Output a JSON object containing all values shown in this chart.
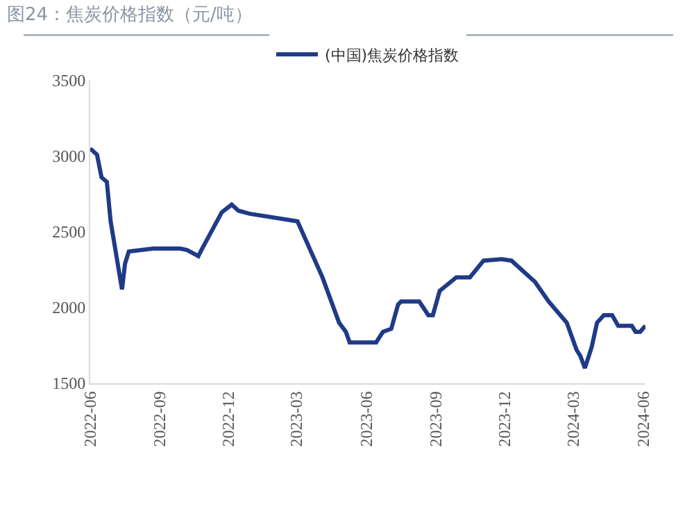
{
  "chart_data": {
    "type": "line",
    "title": "图24：焦炭价格指数（元/吨）",
    "x": [
      "2022-06-01",
      "2022-06-10",
      "2022-06-16",
      "2022-06-23",
      "2022-06-28",
      "2022-07-13",
      "2022-07-17",
      "2022-07-22",
      "2022-08-23",
      "2022-09-28",
      "2022-10-07",
      "2022-10-22",
      "2022-10-26",
      "2022-11-22",
      "2022-12-05",
      "2022-12-14",
      "2022-12-29",
      "2023-03-02",
      "2023-04-04",
      "2023-04-26",
      "2023-05-05",
      "2023-05-10",
      "2023-06-14",
      "2023-06-23",
      "2023-07-04",
      "2023-07-13",
      "2023-07-17",
      "2023-08-10",
      "2023-08-22",
      "2023-08-28",
      "2023-09-06",
      "2023-09-28",
      "2023-10-16",
      "2023-11-03",
      "2023-11-27",
      "2023-12-10",
      "2024-01-10",
      "2024-01-28",
      "2024-02-21",
      "2024-03-05",
      "2024-03-10",
      "2024-03-16",
      "2024-03-25",
      "2024-04-01",
      "2024-04-10",
      "2024-04-21",
      "2024-04-29",
      "2024-05-17",
      "2024-05-22",
      "2024-05-28",
      "2024-06-04"
    ],
    "series": [
      {
        "name": "(中国)焦炭价格指数",
        "color": "#1f3b87",
        "values": [
          3050,
          3010,
          2860,
          2830,
          2570,
          2120,
          2290,
          2370,
          2390,
          2390,
          2380,
          2340,
          2380,
          2630,
          2680,
          2640,
          2620,
          2570,
          2200,
          1900,
          1840,
          1770,
          1770,
          1840,
          1860,
          2020,
          2040,
          2040,
          1950,
          1950,
          2110,
          2200,
          2200,
          2310,
          2320,
          2310,
          2170,
          2040,
          1900,
          1720,
          1680,
          1600,
          1740,
          1900,
          1950,
          1950,
          1880,
          1880,
          1840,
          1840,
          1880
        ]
      }
    ],
    "xlim": [
      "2022-06-01",
      "2024-06-04"
    ],
    "xticks": [
      {
        "value": "2022-06-01",
        "label": "2022-06"
      },
      {
        "value": "2022-09-01",
        "label": "2022-09"
      },
      {
        "value": "2022-12-01",
        "label": "2022-12"
      },
      {
        "value": "2023-03-01",
        "label": "2023-03"
      },
      {
        "value": "2023-06-01",
        "label": "2023-06"
      },
      {
        "value": "2023-09-01",
        "label": "2023-09"
      },
      {
        "value": "2023-12-01",
        "label": "2023-12"
      },
      {
        "value": "2024-03-01",
        "label": "2024-03"
      },
      {
        "value": "2024-06-01",
        "label": "2024-06"
      }
    ],
    "ylim": [
      1500,
      3500
    ],
    "yticks": [
      1500,
      2000,
      2500,
      3000,
      3500
    ],
    "legend": "top",
    "marker": "none",
    "line_style": "solid"
  }
}
